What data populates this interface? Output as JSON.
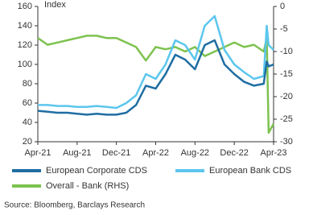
{
  "chart_data": {
    "type": "line",
    "y_label": "Index",
    "x": [
      0,
      1,
      2,
      3,
      4,
      5,
      6,
      7,
      8,
      9,
      10,
      11,
      12,
      13,
      14,
      15,
      16,
      17,
      18,
      19,
      20,
      21,
      22,
      23,
      23.3,
      23.5,
      24
    ],
    "xlim": [
      0,
      24
    ],
    "xticks": [
      {
        "value": 0,
        "label": "Apr-21"
      },
      {
        "value": 4,
        "label": "Aug-21"
      },
      {
        "value": 8,
        "label": "Dec-21"
      },
      {
        "value": 12,
        "label": "Apr-22"
      },
      {
        "value": 16,
        "label": "Aug-22"
      },
      {
        "value": 20,
        "label": "Dec-22"
      },
      {
        "value": 24,
        "label": "Apr-23"
      }
    ],
    "ylim": [
      20,
      160
    ],
    "yticks": [
      20,
      40,
      60,
      80,
      100,
      120,
      140,
      160
    ],
    "y2lim": [
      -30,
      0
    ],
    "y2ticks": [
      0,
      -5,
      -10,
      -15,
      -20,
      -25,
      -30
    ],
    "legend": "bottom",
    "series": [
      {
        "name": "Overall - Bank (RHS)",
        "color": "#7dc24f",
        "axis": "y2",
        "values": [
          -7,
          -8.5,
          -8,
          -7.5,
          -7,
          -6.5,
          -6.5,
          -7,
          -7,
          -8,
          -9,
          -12,
          -9,
          -9.5,
          -9,
          -10,
          -9,
          -11,
          -10,
          -9,
          -8,
          -9,
          -8.5,
          -10,
          -7,
          -28,
          -26
        ]
      },
      {
        "name": "European Bank CDS",
        "color": "#5cc6ee",
        "values": [
          58,
          58,
          57,
          57,
          56,
          56,
          57,
          56,
          55,
          60,
          68,
          90,
          85,
          100,
          125,
          120,
          105,
          140,
          150,
          115,
          100,
          92,
          85,
          88,
          140,
          120,
          115
        ]
      },
      {
        "name": "European Corporate CDS",
        "color": "#1f6ea3",
        "values": [
          52,
          51,
          50,
          50,
          49,
          48,
          49,
          48,
          48,
          50,
          58,
          78,
          75,
          90,
          110,
          105,
          95,
          120,
          125,
          100,
          90,
          82,
          78,
          80,
          103,
          98,
          100
        ]
      }
    ],
    "source": "Source: Bloomberg, Barclays Research"
  }
}
